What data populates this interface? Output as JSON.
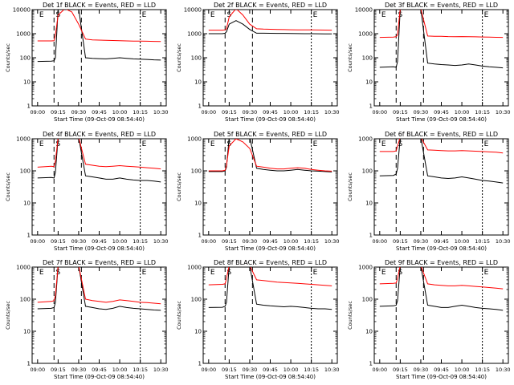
{
  "figure": {
    "legend_text": "BLACK = Events, RED = LLD",
    "ylabel": "Counts/sec",
    "xlabel": "Start Time (09-Oct-09 08:54:40)",
    "x_ticks": [
      "09:00",
      "09:15",
      "09:30",
      "09:45",
      "10:00",
      "10:15",
      "10:30"
    ],
    "y_ticks": [
      "1",
      "10",
      "100",
      "1000",
      "10000"
    ],
    "region_markers": [
      {
        "label": "E",
        "x": "09:00"
      },
      {
        "label": "S",
        "x": "09:15"
      },
      {
        "label": "E",
        "x": "10:15"
      }
    ],
    "colors": {
      "events": "#000000",
      "lld": "#ff0000",
      "axes": "#000000"
    }
  },
  "chart_data": [
    {
      "type": "line",
      "title": "Det 1f",
      "ylim": [
        1,
        10000
      ],
      "yscale": "log",
      "series": [
        {
          "name": "BLACK = Events",
          "color": "#000000",
          "x": [
            "09:00",
            "09:10",
            "09:12",
            "09:13",
            "09:15",
            "09:20",
            "09:25",
            "09:30",
            "09:35",
            "09:40",
            "09:45",
            "09:50",
            "09:55",
            "10:00",
            "10:05",
            "10:10",
            "10:15",
            "10:20",
            "10:25",
            "10:30"
          ],
          "values": [
            70,
            72,
            75,
            100,
            12000,
            12000,
            12000,
            12000,
            100,
            95,
            92,
            90,
            95,
            100,
            95,
            90,
            88,
            85,
            82,
            80
          ]
        },
        {
          "name": "RED = LLD",
          "color": "#ff0000",
          "x": [
            "09:00",
            "09:10",
            "09:12",
            "09:13",
            "09:15",
            "09:20",
            "09:25",
            "09:30",
            "09:35",
            "09:40",
            "09:45",
            "09:50",
            "09:55",
            "10:00",
            "10:05",
            "10:10",
            "10:15",
            "10:20",
            "10:25",
            "10:30"
          ],
          "values": [
            500,
            500,
            510,
            900,
            6000,
            11000,
            8000,
            2500,
            600,
            550,
            540,
            530,
            520,
            510,
            500,
            495,
            490,
            485,
            480,
            470
          ]
        }
      ]
    },
    {
      "type": "line",
      "title": "Det 2f",
      "ylim": [
        1,
        10000
      ],
      "yscale": "log",
      "series": [
        {
          "name": "BLACK = Events",
          "color": "#000000",
          "x": [
            "09:00",
            "09:10",
            "09:12",
            "09:13",
            "09:15",
            "09:20",
            "09:25",
            "09:30",
            "09:35",
            "09:40",
            "09:45",
            "09:50",
            "09:55",
            "10:00",
            "10:05",
            "10:10",
            "10:15",
            "10:20",
            "10:25",
            "10:30"
          ],
          "values": [
            1000,
            1000,
            1050,
            1200,
            2500,
            3500,
            2500,
            1500,
            1050,
            1050,
            1040,
            1030,
            1030,
            1020,
            1010,
            1000,
            1000,
            990,
            980,
            980
          ]
        },
        {
          "name": "RED = LLD",
          "color": "#ff0000",
          "x": [
            "09:00",
            "09:10",
            "09:12",
            "09:13",
            "09:15",
            "09:20",
            "09:25",
            "09:30",
            "09:35",
            "09:40",
            "09:45",
            "09:50",
            "09:55",
            "10:00",
            "10:05",
            "10:10",
            "10:15",
            "10:20",
            "10:25",
            "10:30"
          ],
          "values": [
            1400,
            1400,
            1450,
            1600,
            5000,
            11000,
            6000,
            2500,
            1600,
            1550,
            1520,
            1500,
            1480,
            1460,
            1450,
            1440,
            1430,
            1420,
            1410,
            1400
          ]
        }
      ]
    },
    {
      "type": "line",
      "title": "Det 3f",
      "ylim": [
        1,
        10000
      ],
      "yscale": "log",
      "series": [
        {
          "name": "BLACK = Events",
          "color": "#000000",
          "x": [
            "09:00",
            "09:10",
            "09:12",
            "09:13",
            "09:15",
            "09:20",
            "09:25",
            "09:30",
            "09:35",
            "09:40",
            "09:45",
            "09:50",
            "09:55",
            "10:00",
            "10:05",
            "10:10",
            "10:15",
            "10:20",
            "10:25",
            "10:30"
          ],
          "values": [
            40,
            42,
            40,
            70,
            12000,
            12000,
            12000,
            12000,
            60,
            55,
            52,
            50,
            48,
            50,
            55,
            50,
            45,
            42,
            40,
            38
          ]
        },
        {
          "name": "RED = LLD",
          "color": "#ff0000",
          "x": [
            "09:00",
            "09:10",
            "09:12",
            "09:13",
            "09:15",
            "09:20",
            "09:25",
            "09:30",
            "09:35",
            "09:40",
            "09:45",
            "09:50",
            "09:55",
            "10:00",
            "10:05",
            "10:10",
            "10:15",
            "10:20",
            "10:25",
            "10:30"
          ],
          "values": [
            700,
            720,
            750,
            900,
            12000,
            12000,
            12000,
            12000,
            800,
            780,
            780,
            760,
            750,
            760,
            750,
            740,
            730,
            720,
            710,
            700
          ]
        }
      ]
    },
    {
      "type": "line",
      "title": "Det 4f",
      "ylim": [
        1,
        1000
      ],
      "yscale": "log",
      "series": [
        {
          "name": "BLACK = Events",
          "color": "#000000",
          "x": [
            "09:00",
            "09:10",
            "09:12",
            "09:13",
            "09:15",
            "09:20",
            "09:25",
            "09:30",
            "09:35",
            "09:40",
            "09:45",
            "09:50",
            "09:55",
            "10:00",
            "10:05",
            "10:10",
            "10:15",
            "10:20",
            "10:25",
            "10:30"
          ],
          "values": [
            60,
            62,
            60,
            90,
            1200,
            1200,
            1200,
            1200,
            70,
            65,
            60,
            55,
            55,
            60,
            55,
            52,
            50,
            50,
            48,
            45
          ]
        },
        {
          "name": "RED = LLD",
          "color": "#ff0000",
          "x": [
            "09:00",
            "09:10",
            "09:12",
            "09:13",
            "09:15",
            "09:20",
            "09:25",
            "09:30",
            "09:35",
            "09:40",
            "09:45",
            "09:50",
            "09:55",
            "10:00",
            "10:05",
            "10:10",
            "10:15",
            "10:20",
            "10:25",
            "10:30"
          ],
          "values": [
            130,
            140,
            135,
            200,
            1200,
            1200,
            1200,
            1200,
            160,
            150,
            140,
            135,
            140,
            145,
            140,
            135,
            130,
            125,
            120,
            115
          ]
        }
      ]
    },
    {
      "type": "line",
      "title": "Det 5f",
      "ylim": [
        1,
        1000
      ],
      "yscale": "log",
      "series": [
        {
          "name": "BLACK = Events",
          "color": "#000000",
          "x": [
            "09:00",
            "09:10",
            "09:12",
            "09:13",
            "09:15",
            "09:20",
            "09:25",
            "09:30",
            "09:35",
            "09:40",
            "09:45",
            "09:50",
            "09:55",
            "10:00",
            "10:05",
            "10:10",
            "10:15",
            "10:20",
            "10:25",
            "10:30"
          ],
          "values": [
            95,
            95,
            100,
            130,
            1200,
            1200,
            1200,
            1200,
            120,
            110,
            105,
            100,
            100,
            105,
            110,
            105,
            100,
            98,
            95,
            92
          ]
        },
        {
          "name": "RED = LLD",
          "color": "#ff0000",
          "x": [
            "09:00",
            "09:10",
            "09:12",
            "09:13",
            "09:15",
            "09:20",
            "09:25",
            "09:30",
            "09:35",
            "09:40",
            "09:45",
            "09:50",
            "09:55",
            "10:00",
            "10:05",
            "10:10",
            "10:15",
            "10:20",
            "10:25",
            "10:30"
          ],
          "values": [
            100,
            100,
            105,
            150,
            600,
            1000,
            800,
            500,
            140,
            130,
            120,
            115,
            115,
            120,
            125,
            120,
            110,
            105,
            100,
            98
          ]
        }
      ]
    },
    {
      "type": "line",
      "title": "Det 6f",
      "ylim": [
        1,
        1000
      ],
      "yscale": "log",
      "series": [
        {
          "name": "BLACK = Events",
          "color": "#000000",
          "x": [
            "09:00",
            "09:10",
            "09:12",
            "09:13",
            "09:15",
            "09:20",
            "09:25",
            "09:30",
            "09:35",
            "09:40",
            "09:45",
            "09:50",
            "09:55",
            "10:00",
            "10:05",
            "10:10",
            "10:15",
            "10:20",
            "10:25",
            "10:30"
          ],
          "values": [
            70,
            72,
            80,
            120,
            1200,
            1200,
            1200,
            1200,
            70,
            65,
            60,
            58,
            60,
            65,
            60,
            55,
            50,
            48,
            45,
            42
          ]
        },
        {
          "name": "RED = LLD",
          "color": "#ff0000",
          "x": [
            "09:00",
            "09:10",
            "09:12",
            "09:13",
            "09:15",
            "09:20",
            "09:25",
            "09:30",
            "09:35",
            "09:40",
            "09:45",
            "09:50",
            "09:55",
            "10:00",
            "10:05",
            "10:10",
            "10:15",
            "10:20",
            "10:25",
            "10:30"
          ],
          "values": [
            400,
            400,
            420,
            600,
            1200,
            1200,
            1200,
            1200,
            450,
            440,
            430,
            420,
            420,
            430,
            420,
            410,
            400,
            390,
            380,
            360
          ]
        }
      ]
    },
    {
      "type": "line",
      "title": "Det 7f",
      "ylim": [
        1,
        1000
      ],
      "yscale": "log",
      "series": [
        {
          "name": "BLACK = Events",
          "color": "#000000",
          "x": [
            "09:00",
            "09:10",
            "09:12",
            "09:13",
            "09:15",
            "09:20",
            "09:25",
            "09:30",
            "09:35",
            "09:40",
            "09:45",
            "09:50",
            "09:55",
            "10:00",
            "10:05",
            "10:10",
            "10:15",
            "10:20",
            "10:25",
            "10:30"
          ],
          "values": [
            50,
            52,
            55,
            80,
            1200,
            1200,
            1200,
            1200,
            60,
            55,
            50,
            48,
            52,
            60,
            55,
            52,
            50,
            48,
            46,
            45
          ]
        },
        {
          "name": "RED = LLD",
          "color": "#ff0000",
          "x": [
            "09:00",
            "09:10",
            "09:12",
            "09:13",
            "09:15",
            "09:20",
            "09:25",
            "09:30",
            "09:35",
            "09:40",
            "09:45",
            "09:50",
            "09:55",
            "10:00",
            "10:05",
            "10:10",
            "10:15",
            "10:20",
            "10:25",
            "10:30"
          ],
          "values": [
            80,
            85,
            90,
            130,
            1200,
            1200,
            1200,
            1200,
            100,
            90,
            85,
            80,
            85,
            95,
            90,
            85,
            80,
            78,
            75,
            72
          ]
        }
      ]
    },
    {
      "type": "line",
      "title": "Det 8f",
      "ylim": [
        1,
        1000
      ],
      "yscale": "log",
      "series": [
        {
          "name": "BLACK = Events",
          "color": "#000000",
          "x": [
            "09:00",
            "09:10",
            "09:12",
            "09:13",
            "09:15",
            "09:20",
            "09:25",
            "09:30",
            "09:35",
            "09:40",
            "09:45",
            "09:50",
            "09:55",
            "10:00",
            "10:05",
            "10:10",
            "10:15",
            "10:20",
            "10:25",
            "10:30"
          ],
          "values": [
            55,
            56,
            60,
            80,
            1200,
            1200,
            1200,
            1200,
            70,
            65,
            62,
            60,
            58,
            60,
            58,
            55,
            52,
            50,
            50,
            48
          ]
        },
        {
          "name": "RED = LLD",
          "color": "#ff0000",
          "x": [
            "09:00",
            "09:10",
            "09:12",
            "09:13",
            "09:15",
            "09:20",
            "09:25",
            "09:30",
            "09:35",
            "09:40",
            "09:45",
            "09:50",
            "09:55",
            "10:00",
            "10:05",
            "10:10",
            "10:15",
            "10:20",
            "10:25",
            "10:30"
          ],
          "values": [
            280,
            290,
            300,
            450,
            1200,
            1200,
            1200,
            1200,
            400,
            380,
            360,
            340,
            330,
            320,
            310,
            300,
            290,
            280,
            270,
            260
          ]
        }
      ]
    },
    {
      "type": "line",
      "title": "Det 9f",
      "ylim": [
        1,
        1000
      ],
      "yscale": "log",
      "series": [
        {
          "name": "BLACK = Events",
          "color": "#000000",
          "x": [
            "09:00",
            "09:10",
            "09:12",
            "09:13",
            "09:15",
            "09:20",
            "09:25",
            "09:30",
            "09:35",
            "09:40",
            "09:45",
            "09:50",
            "09:55",
            "10:00",
            "10:05",
            "10:10",
            "10:15",
            "10:20",
            "10:25",
            "10:30"
          ],
          "values": [
            60,
            62,
            65,
            90,
            1200,
            1200,
            1200,
            1200,
            65,
            60,
            55,
            55,
            60,
            65,
            60,
            55,
            52,
            50,
            48,
            45
          ]
        },
        {
          "name": "RED = LLD",
          "color": "#ff0000",
          "x": [
            "09:00",
            "09:10",
            "09:12",
            "09:13",
            "09:15",
            "09:20",
            "09:25",
            "09:30",
            "09:35",
            "09:40",
            "09:45",
            "09:50",
            "09:55",
            "10:00",
            "10:05",
            "10:10",
            "10:15",
            "10:20",
            "10:25",
            "10:30"
          ],
          "values": [
            300,
            310,
            320,
            450,
            1200,
            1200,
            1200,
            1200,
            300,
            280,
            270,
            260,
            260,
            270,
            260,
            250,
            240,
            230,
            220,
            210
          ]
        }
      ]
    }
  ]
}
